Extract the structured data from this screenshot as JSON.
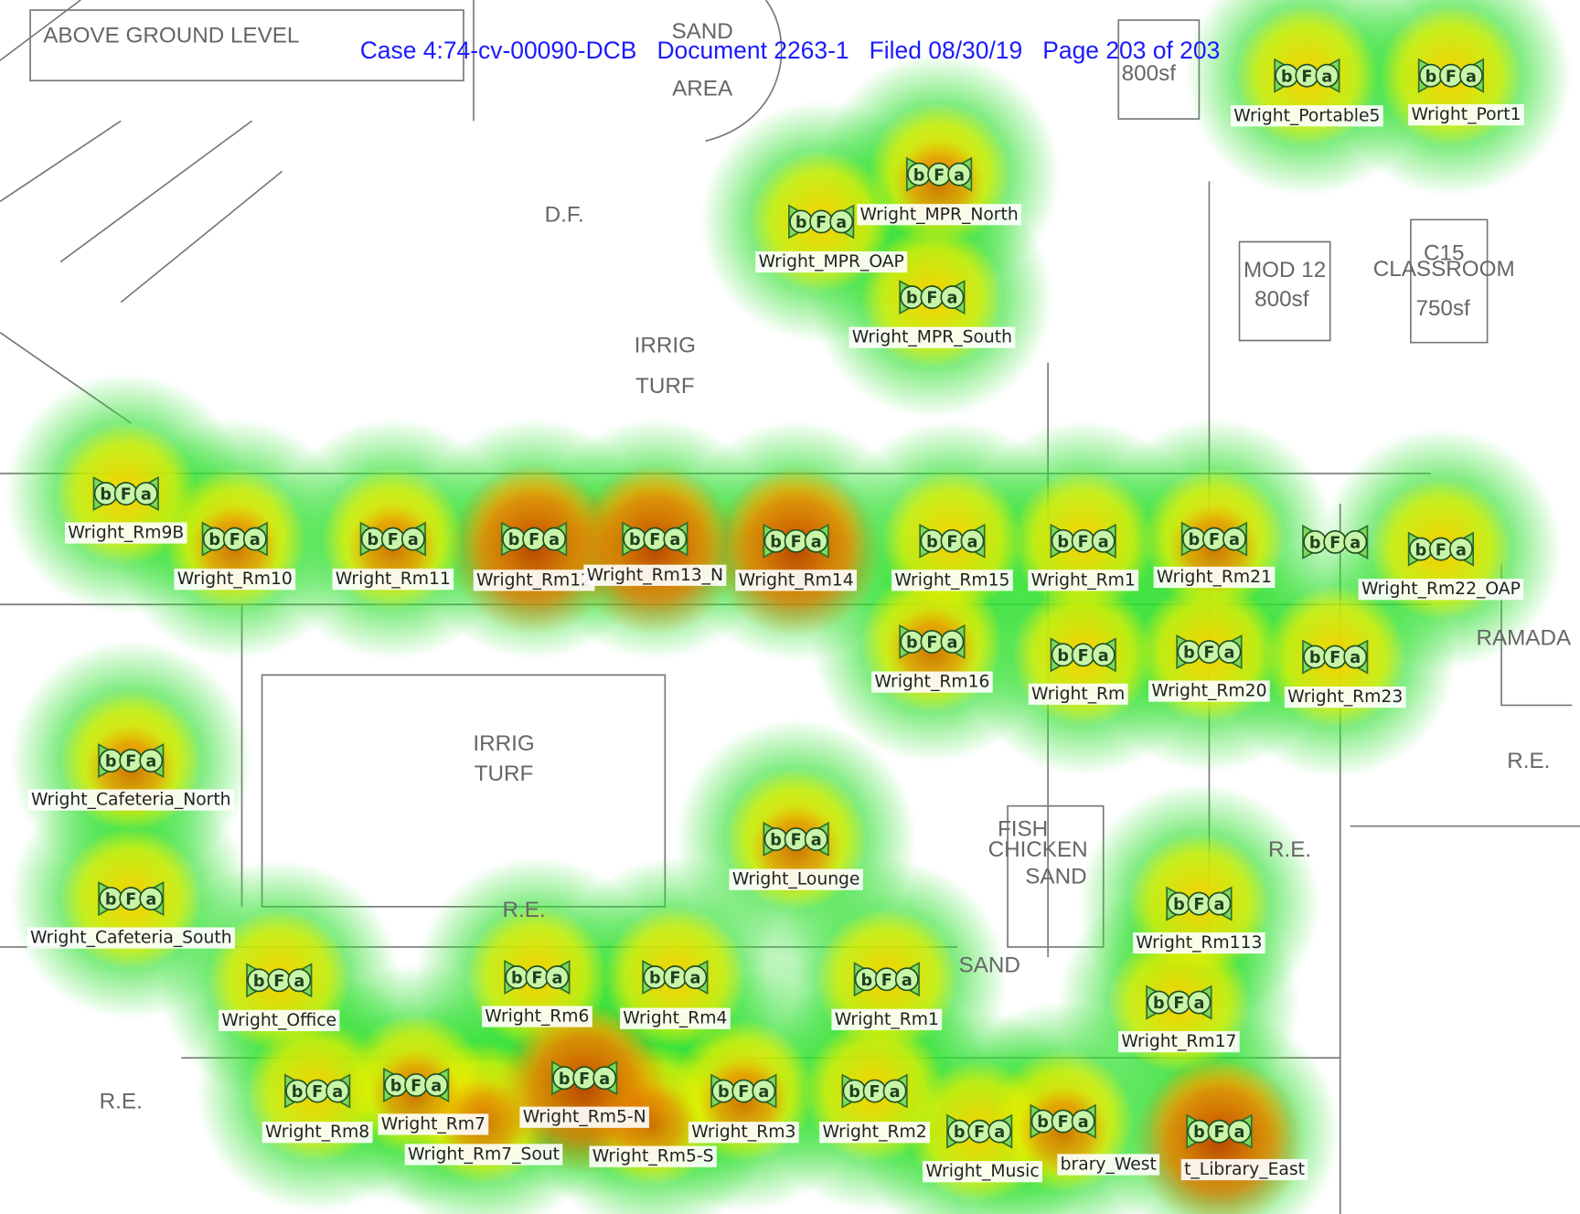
{
  "header": {
    "text": "Case 4:74-cv-00090-DCB   Document 2263-1   Filed 08/30/19   Page 203 of 203"
  },
  "ap_icon_letters": [
    "b",
    "F",
    "a"
  ],
  "access_points": [
    "Wright_Portable5",
    "Wright_Port1",
    "Wright_MPR_North",
    "Wright_MPR_OAP",
    "Wright_MPR_South",
    "Wright_Rm9B",
    "Wright_Rm10",
    "Wright_Rm11",
    "Wright_Rm12",
    "Wright_Rm13_N",
    "Wright_Rm14",
    "Wright_Rm15",
    "Wright_Rm1",
    "Wright_Rm21",
    "Wright_Rm22_OAP",
    "Wright_Rm16",
    "Wright_Rm",
    "Wright_Rm20",
    "Wright_Rm23",
    "Wright_Cafeteria_North",
    "Wright_Cafeteria_South",
    "Wright_Lounge",
    "Wright_Rm113",
    "Wright_Office",
    "Wright_Rm6",
    "Wright_Rm4",
    "Wright_Rm1",
    "Wright_Rm17",
    "Wright_Rm8",
    "Wright_Rm7",
    "Wright_Rm5-N",
    "Wright_Rm7_Sout",
    "Wright_Rm5-S",
    "Wright_Rm3",
    "Wright_Rm2",
    "Wright_Music",
    "brary_West",
    "t_Library_East"
  ],
  "plan_labels": [
    "ABOVE GROUND LEVEL",
    "SAND",
    "AREA",
    "D.F.",
    "IRRIG",
    "TURF",
    "IRRIG",
    "TURF",
    "R.E.",
    "R.E.",
    "R.E.",
    "R.E.",
    "MOD 12",
    "800sf",
    "C15",
    "CLASSROOM",
    "750sf",
    "800sf",
    "RAMADA",
    "SAND",
    "FISH",
    "CHICKEN",
    "SAND"
  ]
}
